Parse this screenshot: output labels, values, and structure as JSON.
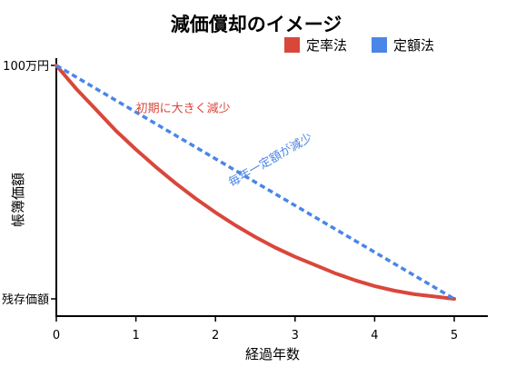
{
  "chart_data": {
    "type": "line",
    "title": "減価償却のイメージ",
    "xlabel": "経過年数",
    "ylabel": "帳簿価額",
    "xlim": [
      0,
      5
    ],
    "x_ticks": [
      "0",
      "1",
      "2",
      "3",
      "4",
      "5"
    ],
    "y_ticks": [
      {
        "label": "100万円",
        "value": 100
      },
      {
        "label": "残存価額",
        "value": 0
      }
    ],
    "ylim": [
      0,
      100
    ],
    "grid": false,
    "legend_position": "top-right",
    "series": [
      {
        "name": "定率法",
        "style": "solid",
        "color": "#d9473b",
        "x": [
          0,
          0.25,
          0.5,
          0.75,
          1,
          1.25,
          1.5,
          1.75,
          2,
          2.25,
          2.5,
          2.75,
          3,
          3.25,
          3.5,
          3.75,
          4,
          4.25,
          4.5,
          4.75,
          5
        ],
        "y": [
          100,
          90,
          81,
          72,
          64,
          56.5,
          49.5,
          43,
          37,
          31.5,
          26.5,
          22,
          18,
          14.5,
          11,
          8,
          5.5,
          3.5,
          2,
          1,
          0
        ]
      },
      {
        "name": "定額法",
        "style": "dashed",
        "color": "#4a86e8",
        "x": [
          0,
          5
        ],
        "y": [
          100,
          0
        ]
      }
    ],
    "annotations": [
      {
        "text": "初期に大きく減少",
        "color": "#d9473b",
        "x": 1.0,
        "y": 80
      },
      {
        "text": "毎年一定額が減少",
        "color": "#4a86e8",
        "x": 2.2,
        "y": 48,
        "angle": -30
      }
    ]
  }
}
